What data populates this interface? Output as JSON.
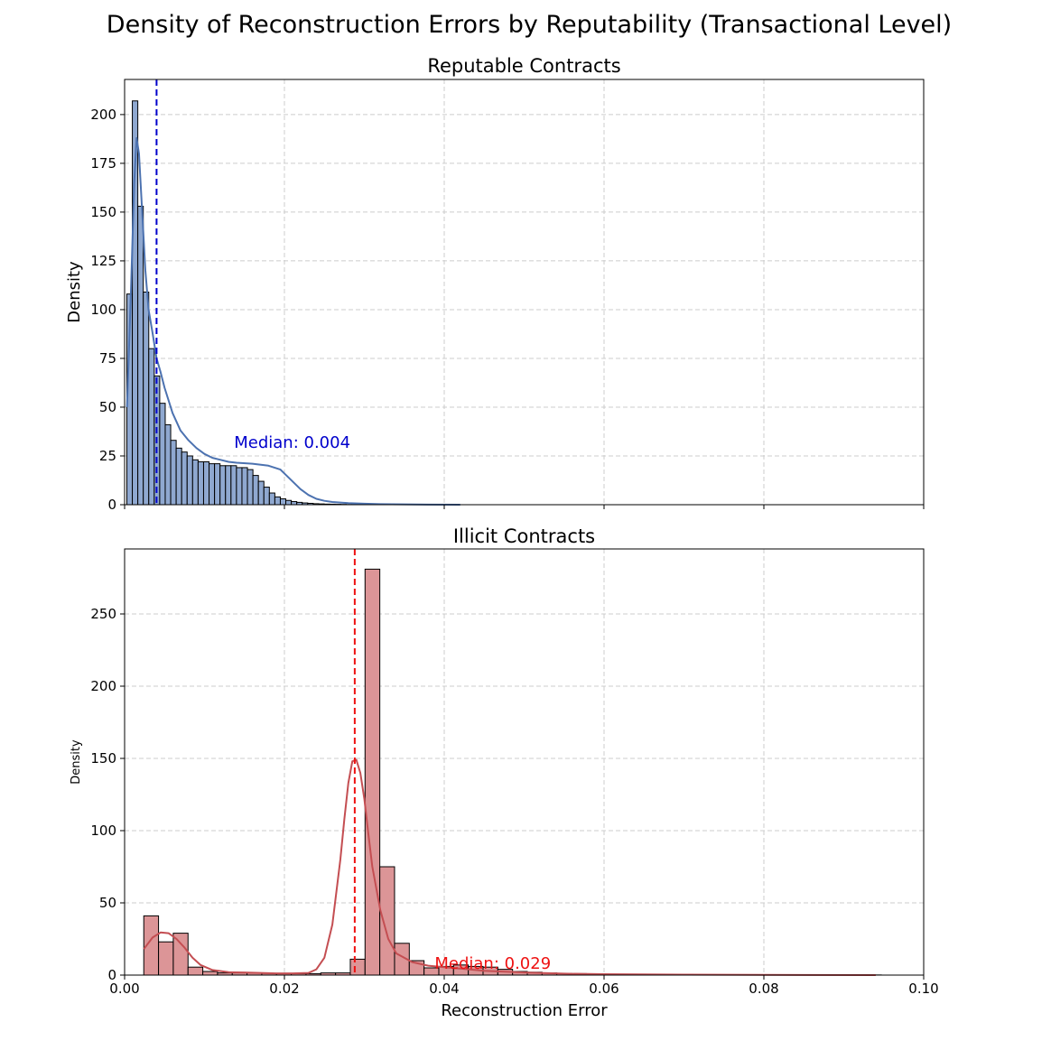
{
  "figure_title": "Density of Reconstruction Errors by Reputability (Transactional Level)",
  "chart_data": [
    {
      "type": "bar",
      "subtype": "histogram-with-kde",
      "title": "Reputable Contracts",
      "xlabel": "",
      "ylabel": "Density",
      "xlim": [
        0.0,
        0.1
      ],
      "ylim": [
        0,
        218
      ],
      "xticks": [
        0.0,
        0.02,
        0.04,
        0.06,
        0.08,
        0.1
      ],
      "xtick_labels": [
        "",
        "",
        "",
        "",
        "",
        ""
      ],
      "yticks": [
        0,
        25,
        50,
        75,
        100,
        125,
        150,
        175,
        200
      ],
      "ytick_labels": [
        "0",
        "25",
        "50",
        "75",
        "100",
        "125",
        "150",
        "175",
        "200"
      ],
      "grid": true,
      "bar_color": "#8fa8d0",
      "kde_color": "#4c72b0",
      "bin_width": 0.000686,
      "bin_start": 0.00028,
      "values": [
        108,
        207,
        153,
        109,
        80,
        66,
        52,
        41,
        33,
        29,
        27,
        25,
        23,
        22,
        22,
        21,
        21,
        20,
        20,
        20,
        19,
        19,
        18,
        15,
        12,
        9,
        6,
        4,
        3,
        2.2,
        1.6,
        1.2,
        0.9,
        0.7,
        0.5,
        0.4,
        0.3,
        0.25,
        0.2,
        0.15,
        0.1,
        0.1,
        0.08,
        0.06,
        0.05,
        0.05,
        0.04,
        0.03,
        0.03,
        0.02,
        0.02,
        0.02,
        0.01,
        0.01
      ],
      "kde": {
        "x": [
          0.0003,
          0.0008,
          0.0012,
          0.0015,
          0.0018,
          0.0022,
          0.0026,
          0.003,
          0.0035,
          0.004,
          0.0045,
          0.005,
          0.006,
          0.007,
          0.008,
          0.009,
          0.01,
          0.011,
          0.012,
          0.013,
          0.014,
          0.016,
          0.018,
          0.0195,
          0.02,
          0.021,
          0.022,
          0.023,
          0.024,
          0.025,
          0.026,
          0.028,
          0.03,
          0.032,
          0.035,
          0.038,
          0.042
        ],
        "y": [
          50,
          110,
          165,
          188,
          180,
          150,
          120,
          100,
          88,
          75,
          68,
          60,
          47,
          38,
          33,
          29,
          26,
          24,
          23,
          22,
          21.5,
          21,
          20,
          18,
          16,
          12,
          8,
          5,
          3,
          2,
          1.4,
          0.8,
          0.5,
          0.3,
          0.15,
          0.05,
          0
        ]
      },
      "median": 0.004,
      "median_color": "#0000cc",
      "median_label": "Median: 0.004",
      "median_label_pos": [
        0.0137,
        32
      ]
    },
    {
      "type": "bar",
      "subtype": "histogram-with-kde",
      "title": "Illicit Contracts",
      "xlabel": "Reconstruction Error",
      "ylabel": "Density",
      "xlim": [
        0.0,
        0.1
      ],
      "ylim": [
        0,
        295
      ],
      "xticks": [
        0.0,
        0.02,
        0.04,
        0.06,
        0.08,
        0.1
      ],
      "xtick_labels": [
        "0.00",
        "0.02",
        "0.04",
        "0.06",
        "0.08",
        "0.10"
      ],
      "yticks": [
        0,
        50,
        100,
        150,
        200,
        250
      ],
      "ytick_labels": [
        "0",
        "50",
        "100",
        "150",
        "200",
        "250"
      ],
      "grid": true,
      "bar_color": "#dc9597",
      "kde_color": "#c44e52",
      "bin_width": 0.001846,
      "bin_start": 0.0024,
      "values": [
        41,
        23,
        29,
        5.5,
        2.5,
        1.5,
        1.5,
        1.5,
        1.2,
        1.0,
        1.0,
        1.0,
        1.5,
        1.5,
        11,
        281,
        75,
        22,
        10,
        5,
        6,
        7,
        6,
        5.5,
        4,
        2.5,
        2,
        1.5,
        1.2,
        1.0,
        0.8,
        0.6,
        0.5,
        0.5,
        0.4,
        0.3,
        0.3,
        0.3,
        0.25,
        0.2,
        0.2,
        0.2,
        0.15,
        0.15,
        0.1,
        0.1,
        0.1,
        0.1,
        0.1,
        0.1
      ],
      "kde": {
        "x": [
          0.0024,
          0.0035,
          0.0045,
          0.0055,
          0.0065,
          0.0075,
          0.0085,
          0.0095,
          0.011,
          0.013,
          0.015,
          0.017,
          0.019,
          0.021,
          0.023,
          0.024,
          0.025,
          0.026,
          0.027,
          0.0275,
          0.028,
          0.0285,
          0.029,
          0.0295,
          0.03,
          0.0305,
          0.031,
          0.032,
          0.033,
          0.034,
          0.036,
          0.038,
          0.04,
          0.042,
          0.045,
          0.05,
          0.055,
          0.06,
          0.07,
          0.08,
          0.094
        ],
        "y": [
          18,
          26,
          29.5,
          29,
          25,
          19,
          12,
          7,
          3.5,
          2,
          1.8,
          1.5,
          1.2,
          1.2,
          1.5,
          4,
          12,
          35,
          80,
          108,
          133,
          148,
          149,
          140,
          122,
          98,
          75,
          45,
          25,
          15,
          9,
          6.5,
          5.5,
          4.5,
          3,
          1.8,
          1,
          0.6,
          0.3,
          0.15,
          0
        ]
      },
      "median": 0.0288,
      "median_color": "#ee1111",
      "median_label": "Median: 0.029",
      "median_label_pos": [
        0.0388,
        8
      ]
    }
  ]
}
